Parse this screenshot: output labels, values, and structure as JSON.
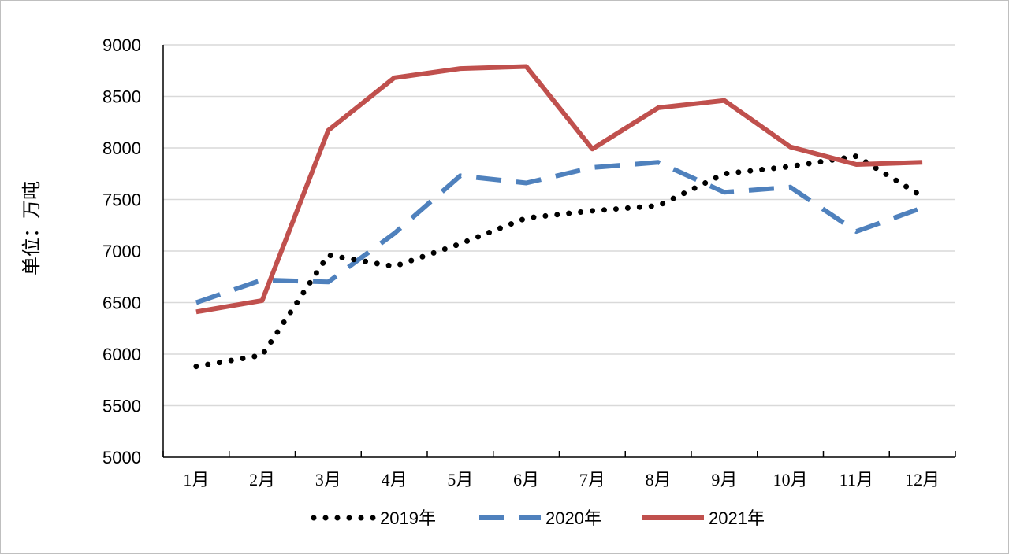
{
  "chart_data": {
    "type": "line",
    "title": "",
    "xlabel": "",
    "ylabel": "单位：万吨",
    "categories": [
      "1月",
      "2月",
      "3月",
      "4月",
      "5月",
      "6月",
      "7月",
      "8月",
      "9月",
      "10月",
      "11月",
      "12月"
    ],
    "ylim": [
      5000,
      9000
    ],
    "yticks": [
      5000,
      5500,
      6000,
      6500,
      7000,
      7500,
      8000,
      8500,
      9000
    ],
    "grid": true,
    "legend_position": "bottom",
    "series": [
      {
        "name": "2019年",
        "values": [
          5880,
          5990,
          6960,
          6850,
          7070,
          7320,
          7390,
          7440,
          7750,
          7820,
          7920,
          7530
        ],
        "color": "#000000",
        "style": "dotted"
      },
      {
        "name": "2020年",
        "values": [
          6500,
          6720,
          6700,
          7170,
          7730,
          7660,
          7810,
          7860,
          7570,
          7620,
          7190,
          7420
        ],
        "color": "#4f81bd",
        "style": "dashed"
      },
      {
        "name": "2021年",
        "values": [
          6410,
          6520,
          8170,
          8680,
          8770,
          8790,
          7990,
          8390,
          8460,
          8010,
          7840,
          7860
        ],
        "color": "#c0504d",
        "style": "solid"
      }
    ]
  }
}
